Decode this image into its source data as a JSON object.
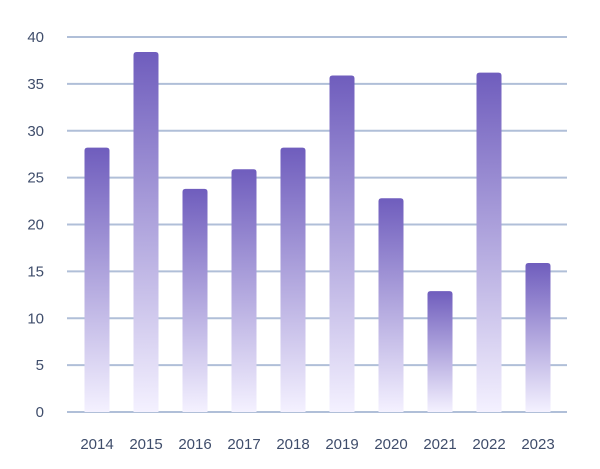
{
  "chart_data": {
    "type": "bar",
    "title": "",
    "xlabel": "",
    "ylabel": "",
    "categories": [
      "2014",
      "2015",
      "2016",
      "2017",
      "2018",
      "2019",
      "2020",
      "2021",
      "2022",
      "2023"
    ],
    "values": [
      28.2,
      38.4,
      23.8,
      25.9,
      28.2,
      35.9,
      22.8,
      12.9,
      36.2,
      15.9
    ],
    "ylim": [
      0,
      40
    ],
    "yticks": [
      "0",
      "5",
      "10",
      "15",
      "20",
      "25",
      "30",
      "35",
      "40"
    ],
    "grid": true,
    "legend": "none",
    "colors": {
      "bar_top": "#6f5dbd",
      "bar_bottom": "#f4f1ff",
      "grid": "#b0bfd8",
      "text": "#3f4d6b"
    }
  }
}
